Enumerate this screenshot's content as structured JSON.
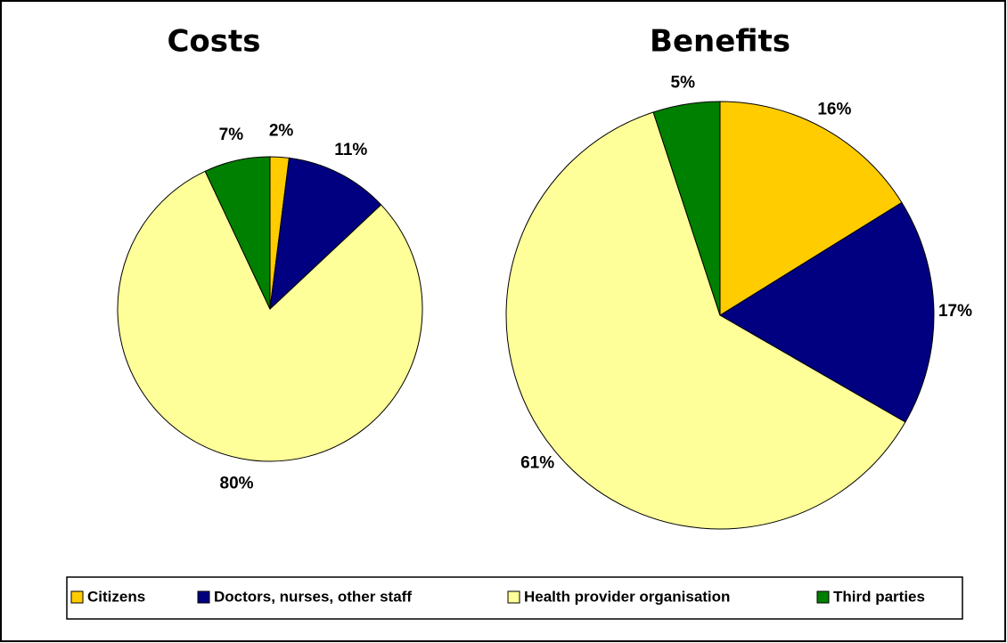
{
  "chart_data": [
    {
      "type": "pie",
      "title": "Costs",
      "categories": [
        "Citizens",
        "Doctors, nurses, other staff",
        "Health provider organisation",
        "Third parties"
      ],
      "values": [
        2,
        11,
        80,
        7
      ],
      "value_labels": [
        "2%",
        "11%",
        "80%",
        "7%"
      ],
      "colors": [
        "#FFCC00",
        "#000080",
        "#FFFF99",
        "#008000"
      ]
    },
    {
      "type": "pie",
      "title": "Benefits",
      "categories": [
        "Citizens",
        "Doctors, nurses, other staff",
        "Health provider organisation",
        "Third parties"
      ],
      "values": [
        16,
        17,
        61,
        5
      ],
      "value_labels": [
        "16%",
        "17%",
        "61%",
        "5%"
      ],
      "colors": [
        "#FFCC00",
        "#000080",
        "#FFFF99",
        "#008000"
      ]
    }
  ]
}
